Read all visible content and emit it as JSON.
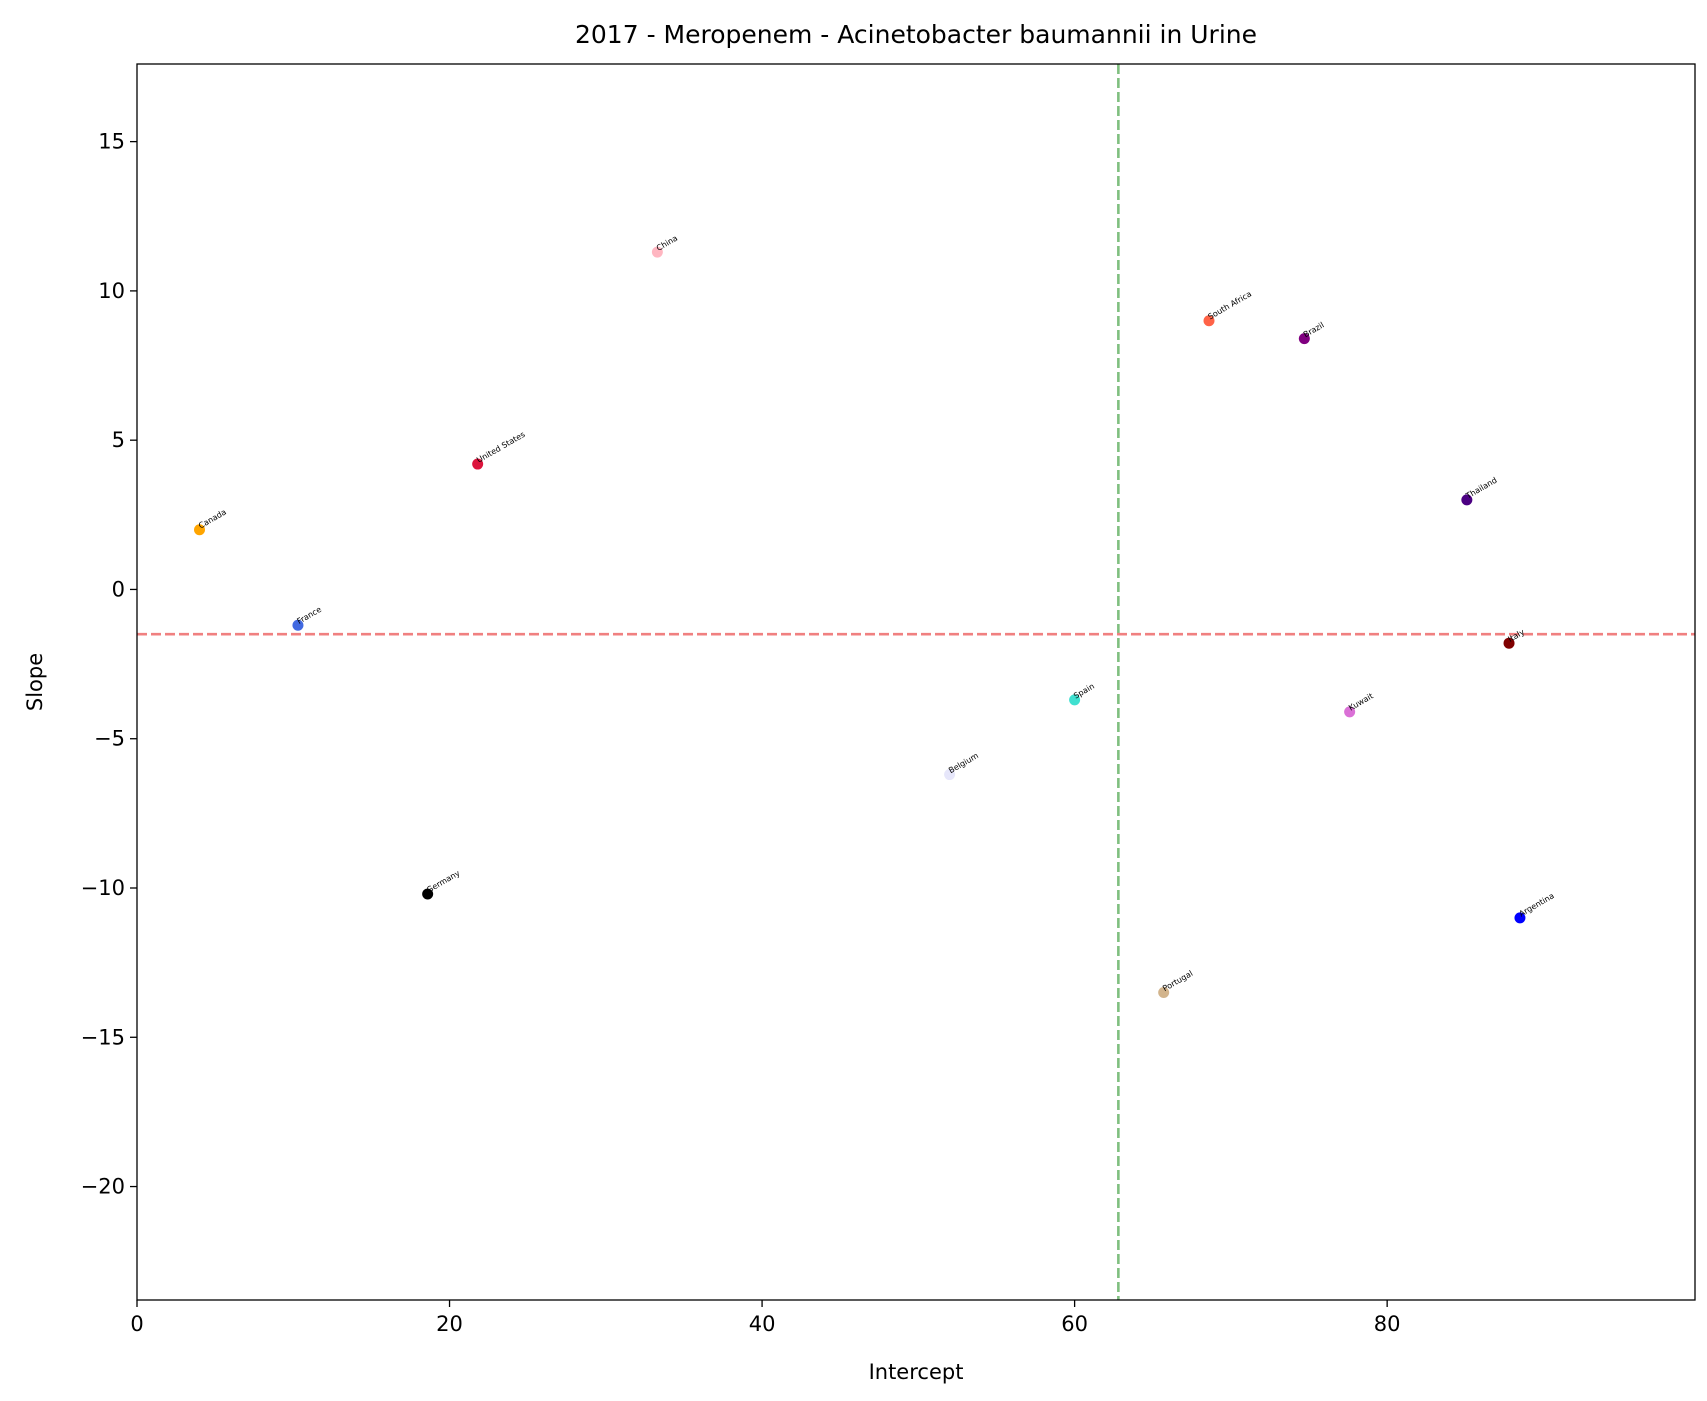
{
  "chart_data": {
    "type": "scatter",
    "title": "2017 - Meropenem - Acinetobacter baumannii in Urine",
    "xlabel": "Intercept",
    "ylabel": "Slope",
    "xlim": [
      0,
      99.7
    ],
    "ylim": [
      -23.8,
      17.6
    ],
    "xticks": [
      0,
      20,
      40,
      60,
      80
    ],
    "yticks": [
      15,
      10,
      5,
      0,
      -5,
      -10,
      -15,
      -20
    ],
    "xtick_labels": [
      "0",
      "20",
      "40",
      "60",
      "80"
    ],
    "ytick_labels": [
      "15",
      "10",
      "5",
      "0",
      "−5",
      "−10",
      "−15",
      "−20"
    ],
    "grid": false,
    "reference_lines": [
      {
        "orientation": "vertical",
        "value": 62.8,
        "color": "#7fbf7f",
        "style": "dashed"
      },
      {
        "orientation": "horizontal",
        "value": -1.5,
        "color": "#f08080",
        "style": "dashed"
      }
    ],
    "points": [
      {
        "label": "China",
        "x": 33.3,
        "y": 11.3,
        "color": "#ffb6c1"
      },
      {
        "label": "South Africa",
        "x": 68.6,
        "y": 9.0,
        "color": "#ff6347"
      },
      {
        "label": "Brazil",
        "x": 74.7,
        "y": 8.4,
        "color": "#800080"
      },
      {
        "label": "United States",
        "x": 21.8,
        "y": 4.2,
        "color": "#dc143c"
      },
      {
        "label": "Thailand",
        "x": 85.1,
        "y": 3.0,
        "color": "#4b0082"
      },
      {
        "label": "Canada",
        "x": 4.0,
        "y": 2.0,
        "color": "#ffa500"
      },
      {
        "label": "France",
        "x": 10.3,
        "y": -1.2,
        "color": "#4169e1"
      },
      {
        "label": "Italy",
        "x": 87.8,
        "y": -1.8,
        "color": "#800000"
      },
      {
        "label": "Spain",
        "x": 60.0,
        "y": -3.7,
        "color": "#40e0d0"
      },
      {
        "label": "Kuwait",
        "x": 77.6,
        "y": -4.1,
        "color": "#da70d6"
      },
      {
        "label": "Belgium",
        "x": 52.0,
        "y": -6.2,
        "color": "#e6e6fa"
      },
      {
        "label": "Germany",
        "x": 18.6,
        "y": -10.2,
        "color": "#000000"
      },
      {
        "label": "Argentina",
        "x": 88.5,
        "y": -11.0,
        "color": "#0000ff"
      },
      {
        "label": "Portugal",
        "x": 65.7,
        "y": -13.5,
        "color": "#d2b48c"
      }
    ]
  }
}
